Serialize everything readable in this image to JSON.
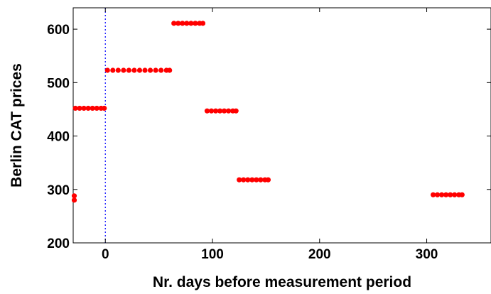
{
  "chart_data": {
    "type": "scatter",
    "title": "",
    "xlabel": "Nr. days before measurement period",
    "ylabel": "Berlin CAT prices",
    "xlim": [
      -30,
      360
    ],
    "ylim": [
      200,
      640
    ],
    "xticks": [
      0,
      100,
      200,
      300
    ],
    "yticks": [
      200,
      300,
      400,
      500,
      600
    ],
    "grid": false,
    "legend": "none",
    "marker_color": "#ff0000",
    "reference_line": {
      "x": 0,
      "style": "dotted",
      "color": "#0000ff"
    },
    "series": [
      {
        "points": [
          [
            -29,
            288
          ],
          [
            -29,
            280
          ],
          [
            -28,
            452
          ],
          [
            -24,
            452
          ],
          [
            -20,
            452
          ],
          [
            -16,
            452
          ],
          [
            -12,
            452
          ],
          [
            -8,
            452
          ],
          [
            -4,
            452
          ],
          [
            -1,
            452
          ],
          [
            2,
            523
          ],
          [
            7,
            523
          ],
          [
            12,
            523
          ],
          [
            17,
            523
          ],
          [
            22,
            523
          ],
          [
            27,
            523
          ],
          [
            32,
            523
          ],
          [
            37,
            523
          ],
          [
            42,
            523
          ],
          [
            47,
            523
          ],
          [
            52,
            523
          ],
          [
            57,
            523
          ],
          [
            60,
            523
          ],
          [
            64,
            611
          ],
          [
            68,
            611
          ],
          [
            72,
            611
          ],
          [
            76,
            611
          ],
          [
            80,
            611
          ],
          [
            84,
            611
          ],
          [
            88,
            611
          ],
          [
            91,
            611
          ],
          [
            95,
            447
          ],
          [
            99,
            447
          ],
          [
            103,
            447
          ],
          [
            107,
            447
          ],
          [
            111,
            447
          ],
          [
            115,
            447
          ],
          [
            119,
            447
          ],
          [
            122,
            447
          ],
          [
            125,
            318
          ],
          [
            129,
            318
          ],
          [
            133,
            318
          ],
          [
            137,
            318
          ],
          [
            141,
            318
          ],
          [
            145,
            318
          ],
          [
            149,
            318
          ],
          [
            152,
            318
          ],
          [
            306,
            290
          ],
          [
            310,
            290
          ],
          [
            314,
            290
          ],
          [
            318,
            290
          ],
          [
            322,
            290
          ],
          [
            326,
            290
          ],
          [
            330,
            290
          ],
          [
            333,
            290
          ]
        ]
      }
    ]
  }
}
